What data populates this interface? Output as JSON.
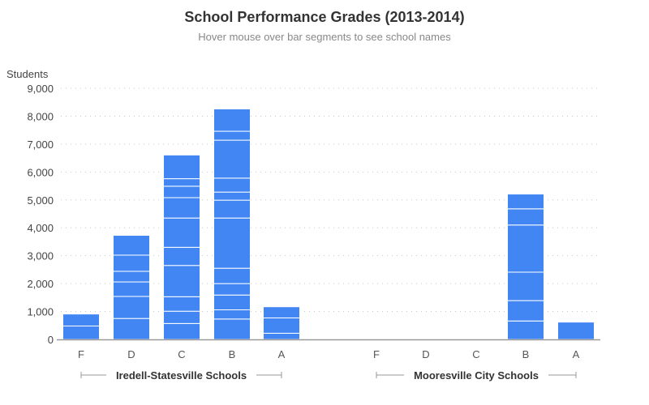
{
  "chart_data": {
    "type": "bar",
    "stacked": true,
    "title": "School Performance Grades (2013-2014)",
    "subtitle": "Hover mouse over bar segments to see school names",
    "ylabel": "Students",
    "ylim": [
      0,
      9000
    ],
    "yticks": [
      "0",
      "1,000",
      "2,000",
      "3,000",
      "4,000",
      "5,000",
      "6,000",
      "7,000",
      "8,000",
      "9,000"
    ],
    "grid": true,
    "bar_color": "#4286f4",
    "groups": [
      {
        "name": "Iredell-Statesville Schools",
        "categories": [
          {
            "label": "F",
            "segments": [
              480,
              430
            ]
          },
          {
            "label": "D",
            "segments": [
              750,
              790,
              520,
              380,
              580,
              710
            ]
          },
          {
            "label": "C",
            "segments": [
              570,
              440,
              520,
              1120,
              650,
              1050,
              730,
              410,
              270,
              850
            ]
          },
          {
            "label": "B",
            "segments": [
              730,
              330,
              530,
              410,
              550,
              1800,
              640,
              290,
              500,
              1360,
              320,
              800
            ]
          },
          {
            "label": "A",
            "segments": [
              220,
              550,
              400
            ]
          }
        ]
      },
      {
        "name": "Mooresville City Schools",
        "categories": [
          {
            "label": "F",
            "segments": []
          },
          {
            "label": "D",
            "segments": []
          },
          {
            "label": "C",
            "segments": []
          },
          {
            "label": "B",
            "segments": [
              660,
              730,
              1020,
              1690,
              580,
              530
            ]
          },
          {
            "label": "A",
            "segments": [
              620
            ]
          }
        ]
      }
    ]
  }
}
